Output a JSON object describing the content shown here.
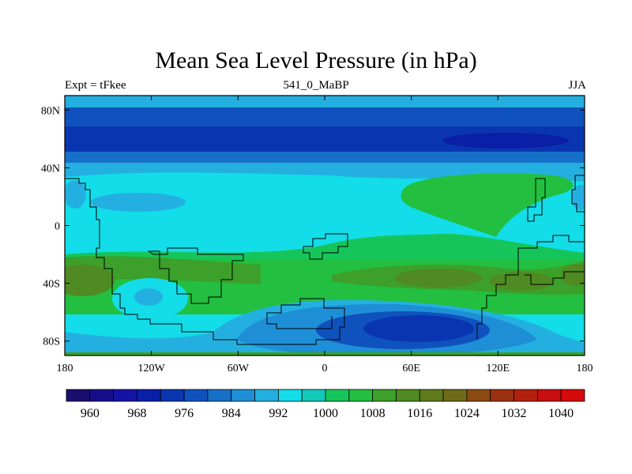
{
  "title": "Mean Sea Level Pressure (in hPa)",
  "left_label": "Expt = tFkee",
  "center_label": "541_0_MaBP",
  "right_label": "JJA",
  "chart_data": {
    "type": "heatmap",
    "title": "Mean Sea Level Pressure (in hPa)",
    "x_ticks": [
      "180",
      "120W",
      "60W",
      "0",
      "60E",
      "120E",
      "180"
    ],
    "y_ticks": [
      "80N",
      "40N",
      "0",
      "40S",
      "80S"
    ],
    "xlim": [
      -180,
      180
    ],
    "ylim": [
      -90,
      90
    ],
    "colorbar": {
      "levels": [
        960,
        964,
        968,
        972,
        976,
        980,
        984,
        988,
        992,
        996,
        1000,
        1004,
        1008,
        1012,
        1016,
        1020,
        1024,
        1028,
        1032,
        1036,
        1040
      ],
      "labels": [
        "960",
        "968",
        "976",
        "984",
        "992",
        "1000",
        "1008",
        "1016",
        "1024",
        "1032",
        "1040"
      ],
      "colors": [
        "#1a0f6e",
        "#170d8c",
        "#1512a6",
        "#0a1fa8",
        "#0a35b0",
        "#0f52be",
        "#1670c8",
        "#1e8fd6",
        "#23b0e0",
        "#12dde8",
        "#11c9b8",
        "#16c55a",
        "#22bf40",
        "#3ca02a",
        "#4f8a22",
        "#5e7a1a",
        "#6e6a18",
        "#8a4a12",
        "#9c3010",
        "#b3200e",
        "#c80e0e",
        "#d60a0a"
      ]
    },
    "fields": [
      {
        "region": "north polar band 60N-90N",
        "level_hpa": 980
      },
      {
        "region": "low centre near 100E 65N",
        "level_hpa": 964
      },
      {
        "region": "mid-latitude band 40N-50N",
        "level_hpa": 992
      },
      {
        "region": "tropics",
        "level_hpa": 1000
      },
      {
        "region": "subtropical highs 30S-40S",
        "level_hpa": 1016
      },
      {
        "region": "southern low centre 60E 65S",
        "level_hpa": 968
      }
    ]
  }
}
